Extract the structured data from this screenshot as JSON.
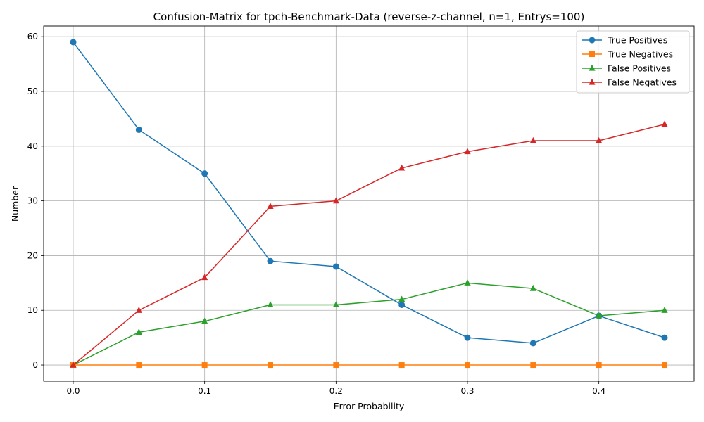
{
  "chart_data": {
    "type": "line",
    "title": "Confusion-Matrix for tpch-Benchmark-Data (reverse-z-channel, n=1, Entrys=100)",
    "xlabel": "Error Probability",
    "ylabel": "Number",
    "x": [
      0.0,
      0.05,
      0.1,
      0.15,
      0.2,
      0.25,
      0.3,
      0.35,
      0.4,
      0.45
    ],
    "xlim": [
      -0.0225,
      0.4725
    ],
    "ylim": [
      -2.95,
      61.95
    ],
    "xticks": [
      0.0,
      0.1,
      0.2,
      0.3,
      0.4
    ],
    "xtick_labels": [
      "0.0",
      "0.1",
      "0.2",
      "0.3",
      "0.4"
    ],
    "yticks": [
      0,
      10,
      20,
      30,
      40,
      50,
      60
    ],
    "ytick_labels": [
      "0",
      "10",
      "20",
      "30",
      "40",
      "50",
      "60"
    ],
    "grid": true,
    "legend_position": "top-right",
    "series": [
      {
        "name": "True Positives",
        "color": "#1f77b4",
        "marker": "circle",
        "values": [
          59,
          43,
          35,
          19,
          18,
          11,
          5,
          4,
          9,
          5
        ]
      },
      {
        "name": "True Negatives",
        "color": "#ff7f0e",
        "marker": "square",
        "values": [
          0,
          0,
          0,
          0,
          0,
          0,
          0,
          0,
          0,
          0
        ]
      },
      {
        "name": "False Positives",
        "color": "#2ca02c",
        "marker": "triangle",
        "values": [
          0,
          6,
          8,
          11,
          11,
          12,
          15,
          14,
          9,
          10
        ]
      },
      {
        "name": "False Negatives",
        "color": "#d62728",
        "marker": "triangle",
        "values": [
          0,
          10,
          16,
          29,
          30,
          36,
          39,
          41,
          41,
          44
        ]
      }
    ]
  }
}
